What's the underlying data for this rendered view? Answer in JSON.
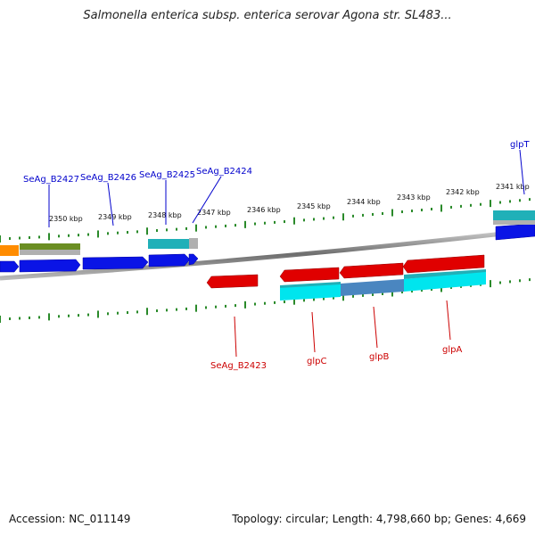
{
  "title": "Salmonella enterica subsp. enterica serovar Agona str. SL483...",
  "footer": {
    "accession": "Accession: NC_011149",
    "summary": "Topology: circular; Length: 4,798,660 bp; Genes: 4,669"
  },
  "colors": {
    "backbone": "#8a8a8a",
    "tick": "#2a8a2a",
    "label_blue": "#0000cc",
    "label_red": "#cc0000",
    "cds_blue": "#0a14e6",
    "cds_red": "#e00000",
    "cyan": "#00e5ee",
    "cyan_dark": "#20b0b8",
    "steel": "#4a86c0",
    "olive": "#6b8e23",
    "orange": "#ff8c00",
    "gray": "#aaaaaa"
  },
  "kbp_labels": [
    "2350 kbp",
    "2349 kbp",
    "2348 kbp",
    "2347 kbp",
    "2346 kbp",
    "2345 kbp",
    "2344 kbp",
    "2343 kbp",
    "2342 kbp",
    "2341 kbp"
  ],
  "gene_labels_top": [
    "SeAg_B2427",
    "SeAg_B2426",
    "SeAg_B2425",
    "SeAg_B2424",
    "glpT"
  ],
  "gene_labels_bottom": [
    "SeAg_B2423",
    "glpC",
    "glpB",
    "glpA"
  ]
}
